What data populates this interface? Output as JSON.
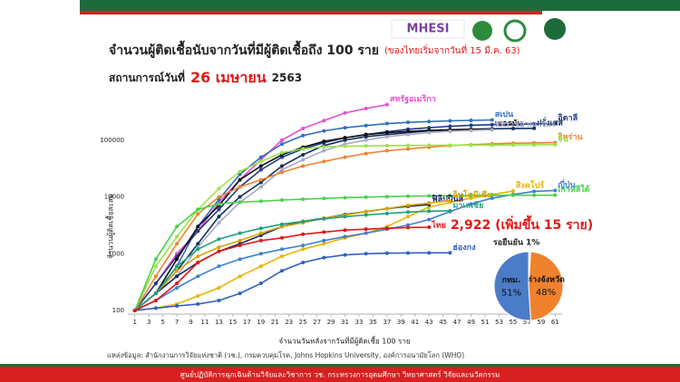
{
  "header": {
    "logo": "MHESI"
  },
  "title": "จำนวนผู้ติดเชื้อนับจากวันที่มีผู้ติดเชื้อถึง 100 ราย",
  "title_note": "(ของไทยเริ่มจากวันที่ 15 มี.ค. 63)",
  "situation": {
    "prefix": "สถานการณ์วันที่",
    "date": "26 เมษายน",
    "year": "2563"
  },
  "source": "แหล่งข้อมูล: สำนักงานการวิจัยแห่งชาติ (วช.), กรมควบคุมโรค, Johns Hopkins University, องค์การอนามัยโลก (WHO)",
  "footer": "ศูนย์ปฏิบัติการฉุกเฉินด้านวิจัยและวิชาการ   วช.   กระทรวงการอุดมศึกษา วิทยาศาสตร์ วิจัยและนวัตกรรม",
  "chart_data": [
    {
      "type": "line",
      "x_label": "จำนวนวันหลังจากวันที่มีผู้ติดเชื้อ 100 ราย",
      "y_label": "จำนวนผู้ติดเชื้อสะสม",
      "log_y": true,
      "grid": false,
      "xlim": [
        0,
        62
      ],
      "xticks": [
        1,
        3,
        5,
        7,
        9,
        11,
        13,
        15,
        17,
        19,
        21,
        23,
        25,
        27,
        29,
        31,
        33,
        35,
        37,
        39,
        41,
        43,
        45,
        47,
        49,
        51,
        53,
        55,
        57,
        59,
        61
      ],
      "ylim": [
        100,
        1000000
      ],
      "yticks": [
        100,
        1000,
        10000,
        100000
      ],
      "x": [
        1,
        4,
        7,
        10,
        13,
        16,
        19,
        22,
        25,
        28,
        31,
        34,
        37,
        40,
        43,
        46,
        49,
        52,
        55,
        58,
        61
      ],
      "annotation": "2,922 (เพิ่มขึ้น 15 ราย)",
      "series": [
        {
          "name": "สหรัฐอเมริกา",
          "color": "#e84fd0",
          "values": [
            100,
            300,
            1000,
            2500,
            8000,
            20000,
            45000,
            100000,
            160000,
            220000,
            300000,
            360000,
            420000,
            null,
            null,
            null,
            null,
            null,
            null,
            null,
            null
          ]
        },
        {
          "name": "สเปน",
          "color": "#2f6fbf",
          "values": [
            100,
            200,
            600,
            3000,
            9000,
            25000,
            50000,
            85000,
            120000,
            145000,
            165000,
            180000,
            195000,
            205000,
            212000,
            218000,
            222000,
            226000,
            null,
            null,
            null
          ]
        },
        {
          "name": "อิตาลี",
          "color": "#1f3b8c",
          "values": [
            100,
            300,
            900,
            2500,
            6000,
            15000,
            30000,
            50000,
            70000,
            90000,
            110000,
            125000,
            140000,
            155000,
            165000,
            175000,
            182000,
            187000,
            190000,
            193000,
            195000
          ]
        },
        {
          "name": "ฝรั่งเศส",
          "color": "#14305e",
          "values": [
            100,
            200,
            500,
            1500,
            4500,
            10000,
            18000,
            35000,
            55000,
            80000,
            100000,
            115000,
            125000,
            135000,
            145000,
            150000,
            155000,
            158000,
            160000,
            161000,
            null
          ]
        },
        {
          "name": "เยอรมัน",
          "color": "#111111",
          "values": [
            100,
            200,
            800,
            3000,
            7000,
            20000,
            35000,
            55000,
            75000,
            95000,
            110000,
            125000,
            135000,
            142000,
            148000,
            152000,
            155000,
            156000,
            null,
            null,
            null
          ]
        },
        {
          "name": "สหราชอาณาจักร",
          "color": "#a9a9c9",
          "values": [
            100,
            200,
            400,
            1300,
            3500,
            8000,
            15000,
            30000,
            45000,
            65000,
            85000,
            100000,
            115000,
            125000,
            135000,
            143000,
            148000,
            152000,
            null,
            null,
            null
          ]
        },
        {
          "name": "อิหร่าน",
          "color": "#f0822e",
          "values": [
            100,
            400,
            1500,
            5000,
            10000,
            15000,
            20000,
            27000,
            35000,
            42000,
            50000,
            58000,
            65000,
            70000,
            75000,
            80000,
            83000,
            86000,
            88000,
            89000,
            90000
          ]
        },
        {
          "name": "จีน",
          "color": "#9be34a",
          "values": [
            100,
            600,
            2000,
            6000,
            14000,
            28000,
            42000,
            60000,
            70000,
            76000,
            78000,
            79000,
            80000,
            80500,
            81000,
            81200,
            81500,
            81800,
            82000,
            82500,
            83000
          ]
        },
        {
          "name": "สิงคโปร์",
          "color": "#e8b400",
          "values": [
            100,
            110,
            130,
            180,
            250,
            400,
            600,
            900,
            1200,
            1500,
            1900,
            2300,
            3000,
            4500,
            6600,
            8000,
            9500,
            11000,
            12700,
            null,
            null
          ]
        },
        {
          "name": "ญี่ปุ่น",
          "color": "#3f7fd0",
          "values": [
            100,
            150,
            250,
            400,
            600,
            800,
            1000,
            1200,
            1400,
            1700,
            2000,
            2300,
            2700,
            3200,
            4000,
            5500,
            7500,
            9500,
            11000,
            12500,
            13000
          ]
        },
        {
          "name": "เกาหลีใต้",
          "color": "#4ad04a",
          "values": [
            100,
            800,
            3000,
            6000,
            7500,
            8100,
            8400,
            8800,
            9100,
            9400,
            9700,
            9900,
            10100,
            10300,
            10400,
            10500,
            10600,
            10650,
            10680,
            10700,
            10730
          ]
        },
        {
          "name": "ฟิลิปปินส์",
          "color": "#1c2a66",
          "values": [
            100,
            200,
            400,
            700,
            1100,
            1500,
            2100,
            3000,
            3700,
            4200,
            4900,
            5500,
            6200,
            6800,
            7300,
            null,
            null,
            null,
            null,
            null,
            null
          ]
        },
        {
          "name": "อินโดนีเซีย",
          "color": "#d9a400",
          "values": [
            100,
            200,
            500,
            900,
            1300,
            1700,
            2300,
            3000,
            3500,
            4200,
            4800,
            5500,
            6200,
            7100,
            7800,
            8600,
            null,
            null,
            null,
            null,
            null
          ]
        },
        {
          "name": "มาเลเซีย",
          "color": "#1fa07e",
          "values": [
            100,
            200,
            600,
            1200,
            1800,
            2300,
            2800,
            3300,
            3700,
            4100,
            4500,
            4800,
            5100,
            5400,
            5600,
            5700,
            null,
            null,
            null,
            null,
            null
          ]
        },
        {
          "name": "ฮ่องกง",
          "color": "#3060c0",
          "values": [
            100,
            110,
            120,
            130,
            150,
            200,
            300,
            500,
            700,
            850,
            950,
            1000,
            1020,
            1030,
            1035,
            1037,
            null,
            null,
            null,
            null,
            null
          ]
        },
        {
          "name": "ไทย",
          "color": "#e01818",
          "values": [
            100,
            150,
            300,
            700,
            1100,
            1400,
            1700,
            1900,
            2200,
            2400,
            2600,
            2700,
            2800,
            2880,
            2922,
            null,
            null,
            null,
            null,
            null,
            null
          ]
        }
      ]
    },
    {
      "type": "pie",
      "categories": [
        "รอยืนยัน",
        "ต่างจังหวัด",
        "กทม."
      ],
      "values": [
        1,
        48,
        51
      ],
      "value_labels": [
        "1%",
        "48%",
        "51%"
      ],
      "colors": [
        "#dddddd",
        "#f0822e",
        "#4a7cc8"
      ]
    }
  ]
}
